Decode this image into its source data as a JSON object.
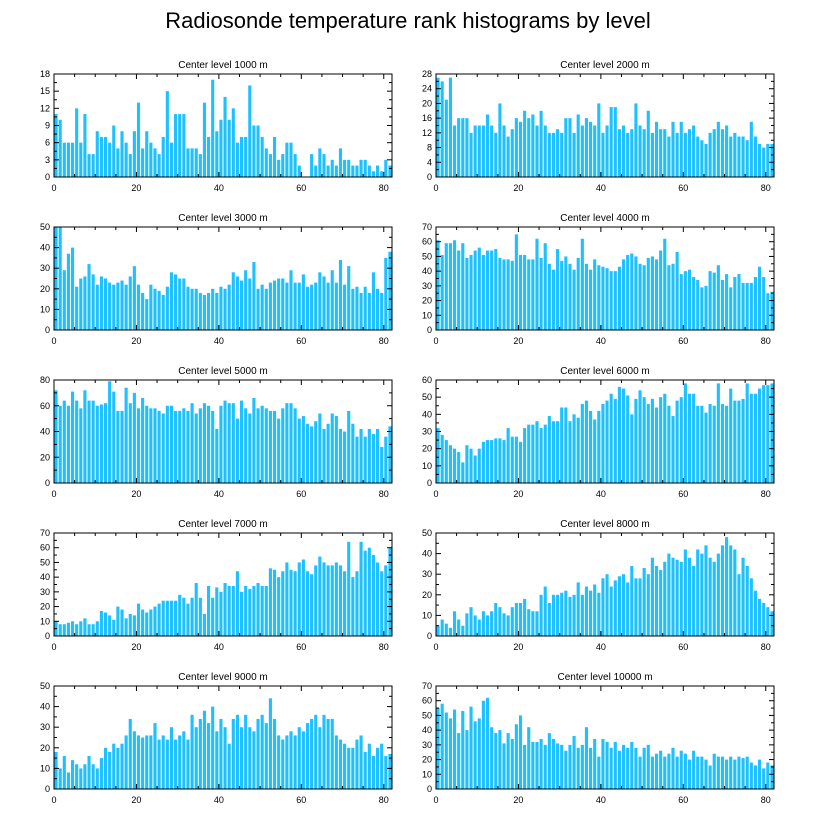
{
  "title": "Radiosonde temperature rank histograms by level",
  "colors": {
    "bar": "#1ec0ff",
    "axis": "#000000"
  },
  "chart_data": [
    {
      "type": "bar",
      "title": "Center level 1000 m",
      "ylim": [
        0,
        18
      ],
      "yticks": [
        0,
        3,
        6,
        9,
        12,
        15,
        18
      ],
      "xlim": [
        0,
        82
      ],
      "xticks": [
        0,
        20,
        40,
        60,
        80
      ],
      "values": [
        11,
        10,
        6,
        6,
        6,
        12,
        6,
        11,
        4,
        4,
        8,
        7,
        7,
        6,
        9,
        5,
        8,
        6,
        4,
        8,
        13,
        5,
        8,
        6,
        5,
        4,
        7,
        15,
        6,
        11,
        11,
        11,
        5,
        5,
        5,
        4,
        13,
        7,
        17,
        8,
        10,
        14,
        10,
        12,
        6,
        7,
        7,
        16,
        9,
        9,
        7,
        5,
        4,
        7,
        3,
        4,
        6,
        6,
        4,
        2,
        0,
        0,
        4,
        2,
        5,
        4,
        2,
        3,
        2,
        5,
        3,
        3,
        2,
        2,
        3,
        3,
        2,
        1,
        2,
        1,
        3,
        2
      ]
    },
    {
      "type": "bar",
      "title": "Center level 2000 m",
      "ylim": [
        0,
        28
      ],
      "yticks": [
        0,
        4,
        8,
        12,
        16,
        20,
        24,
        28
      ],
      "xlim": [
        0,
        82
      ],
      "xticks": [
        0,
        20,
        40,
        60,
        80
      ],
      "values": [
        27,
        26,
        21,
        27,
        14,
        16,
        16,
        16,
        12,
        14,
        14,
        14,
        17,
        14,
        12,
        20,
        14,
        11,
        13,
        16,
        15,
        18,
        16,
        17,
        14,
        18,
        14,
        12,
        12,
        13,
        12,
        16,
        16,
        12,
        17,
        14,
        16,
        15,
        14,
        20,
        12,
        14,
        19,
        19,
        13,
        14,
        12,
        13,
        20,
        14,
        13,
        18,
        12,
        15,
        13,
        13,
        11,
        15,
        12,
        15,
        12,
        13,
        14,
        11,
        10,
        9,
        12,
        13,
        15,
        13,
        14,
        11,
        12,
        11,
        11,
        10,
        15,
        11,
        9,
        8,
        9,
        9
      ]
    },
    {
      "type": "bar",
      "title": "Center level 3000 m",
      "ylim": [
        0,
        50
      ],
      "yticks": [
        0,
        10,
        20,
        30,
        40,
        50
      ],
      "xlim": [
        0,
        82
      ],
      "xticks": [
        0,
        20,
        40,
        60,
        80
      ],
      "values": [
        50,
        50,
        29,
        37,
        40,
        21,
        25,
        26,
        32,
        27,
        22,
        26,
        25,
        23,
        22,
        23,
        24,
        22,
        26,
        31,
        22,
        18,
        15,
        22,
        20,
        19,
        17,
        21,
        28,
        27,
        25,
        25,
        21,
        20,
        20,
        18,
        17,
        18,
        20,
        18,
        21,
        20,
        22,
        28,
        26,
        24,
        29,
        25,
        33,
        20,
        22,
        20,
        23,
        24,
        25,
        25,
        23,
        29,
        23,
        23,
        27,
        21,
        22,
        23,
        28,
        26,
        23,
        29,
        23,
        34,
        22,
        31,
        20,
        21,
        18,
        21,
        18,
        28,
        20,
        18,
        35,
        38
      ]
    },
    {
      "type": "bar",
      "title": "Center level 4000 m",
      "ylim": [
        0,
        70
      ],
      "yticks": [
        0,
        10,
        20,
        30,
        40,
        50,
        60,
        70
      ],
      "xlim": [
        0,
        82
      ],
      "xticks": [
        0,
        20,
        40,
        60,
        80
      ],
      "values": [
        61,
        51,
        59,
        59,
        61,
        54,
        59,
        49,
        51,
        54,
        56,
        51,
        54,
        54,
        55,
        49,
        48,
        48,
        47,
        65,
        51,
        51,
        48,
        48,
        62,
        49,
        59,
        45,
        41,
        55,
        47,
        50,
        45,
        41,
        49,
        62,
        45,
        41,
        48,
        44,
        43,
        42,
        40,
        40,
        43,
        48,
        51,
        52,
        50,
        45,
        44,
        49,
        50,
        48,
        54,
        62,
        44,
        45,
        53,
        38,
        40,
        41,
        36,
        34,
        29,
        30,
        40,
        39,
        44,
        34,
        38,
        29,
        36,
        38,
        32,
        32,
        32,
        36,
        43,
        36,
        25,
        26
      ]
    },
    {
      "type": "bar",
      "title": "Center level 5000 m",
      "ylim": [
        0,
        80
      ],
      "yticks": [
        0,
        20,
        40,
        60,
        80
      ],
      "xlim": [
        0,
        82
      ],
      "xticks": [
        0,
        20,
        40,
        60,
        80
      ],
      "values": [
        72,
        60,
        64,
        60,
        71,
        64,
        58,
        72,
        64,
        64,
        60,
        61,
        62,
        79,
        71,
        56,
        56,
        74,
        62,
        70,
        58,
        66,
        60,
        58,
        58,
        56,
        54,
        60,
        60,
        56,
        56,
        58,
        56,
        62,
        54,
        58,
        62,
        60,
        56,
        42,
        60,
        64,
        62,
        62,
        50,
        64,
        58,
        54,
        66,
        58,
        60,
        58,
        56,
        56,
        50,
        58,
        62,
        62,
        58,
        50,
        52,
        46,
        44,
        48,
        54,
        42,
        46,
        54,
        52,
        42,
        40,
        56,
        46,
        36,
        42,
        36,
        42,
        38,
        42,
        28,
        36,
        44
      ]
    },
    {
      "type": "bar",
      "title": "Center level 6000 m",
      "ylim": [
        0,
        60
      ],
      "yticks": [
        0,
        10,
        20,
        30,
        40,
        50,
        60
      ],
      "xlim": [
        0,
        82
      ],
      "xticks": [
        0,
        20,
        40,
        60,
        80
      ],
      "values": [
        32,
        28,
        25,
        22,
        20,
        18,
        12,
        22,
        20,
        16,
        20,
        24,
        25,
        25,
        26,
        26,
        25,
        32,
        27,
        27,
        24,
        32,
        34,
        34,
        36,
        32,
        34,
        39,
        36,
        36,
        44,
        44,
        36,
        40,
        38,
        46,
        48,
        42,
        37,
        42,
        46,
        48,
        52,
        49,
        56,
        55,
        51,
        40,
        49,
        54,
        50,
        46,
        49,
        44,
        50,
        52,
        45,
        39,
        48,
        50,
        58,
        52,
        52,
        45,
        45,
        41,
        46,
        45,
        58,
        46,
        45,
        55,
        48,
        48,
        49,
        58,
        52,
        52,
        55,
        57,
        57,
        58
      ]
    },
    {
      "type": "bar",
      "title": "Center level 7000 m",
      "ylim": [
        0,
        70
      ],
      "yticks": [
        0,
        10,
        20,
        30,
        40,
        50,
        60,
        70
      ],
      "xlim": [
        0,
        82
      ],
      "xticks": [
        0,
        20,
        40,
        60,
        80
      ],
      "values": [
        10,
        8,
        8,
        9,
        10,
        8,
        10,
        12,
        8,
        8,
        10,
        17,
        16,
        14,
        11,
        20,
        18,
        12,
        15,
        14,
        22,
        18,
        16,
        18,
        20,
        22,
        24,
        24,
        24,
        24,
        28,
        26,
        22,
        26,
        36,
        26,
        15,
        34,
        26,
        33,
        30,
        36,
        34,
        34,
        44,
        30,
        34,
        32,
        34,
        36,
        34,
        34,
        46,
        45,
        40,
        44,
        50,
        45,
        44,
        50,
        52,
        44,
        42,
        48,
        54,
        50,
        48,
        48,
        50,
        48,
        44,
        64,
        40,
        44,
        64,
        58,
        60,
        55,
        50,
        44,
        48,
        60
      ]
    },
    {
      "type": "bar",
      "title": "Center level 8000 m",
      "ylim": [
        0,
        50
      ],
      "yticks": [
        0,
        10,
        20,
        30,
        40,
        50
      ],
      "xlim": [
        0,
        82
      ],
      "xticks": [
        0,
        20,
        40,
        60,
        80
      ],
      "values": [
        5,
        8,
        6,
        4,
        12,
        8,
        5,
        11,
        14,
        10,
        8,
        12,
        10,
        12,
        16,
        14,
        11,
        10,
        14,
        16,
        16,
        18,
        13,
        12,
        12,
        20,
        24,
        16,
        20,
        20,
        21,
        22,
        19,
        20,
        26,
        20,
        24,
        22,
        25,
        21,
        28,
        30,
        24,
        27,
        29,
        30,
        26,
        34,
        28,
        28,
        33,
        30,
        38,
        34,
        32,
        36,
        40,
        38,
        37,
        36,
        42,
        38,
        34,
        42,
        40,
        44,
        38,
        36,
        40,
        44,
        48,
        44,
        42,
        30,
        38,
        34,
        28,
        22,
        18,
        16,
        14,
        12
      ]
    },
    {
      "type": "bar",
      "title": "Center level 9000 m",
      "ylim": [
        0,
        50
      ],
      "yticks": [
        0,
        10,
        20,
        30,
        40,
        50
      ],
      "xlim": [
        0,
        82
      ],
      "xticks": [
        0,
        20,
        40,
        60,
        80
      ],
      "values": [
        18,
        10,
        16,
        8,
        14,
        12,
        10,
        12,
        16,
        12,
        10,
        15,
        20,
        18,
        22,
        20,
        22,
        26,
        34,
        28,
        26,
        25,
        26,
        26,
        32,
        24,
        26,
        24,
        30,
        24,
        26,
        28,
        24,
        36,
        30,
        34,
        38,
        32,
        40,
        28,
        34,
        30,
        22,
        34,
        36,
        30,
        36,
        30,
        28,
        34,
        36,
        32,
        44,
        34,
        26,
        24,
        26,
        28,
        26,
        30,
        28,
        32,
        34,
        36,
        30,
        36,
        34,
        34,
        26,
        24,
        22,
        20,
        20,
        24,
        26,
        18,
        22,
        16,
        20,
        22,
        16,
        17
      ]
    },
    {
      "type": "bar",
      "title": "Center level 10000 m",
      "ylim": [
        0,
        70
      ],
      "yticks": [
        0,
        10,
        20,
        30,
        40,
        50,
        60,
        70
      ],
      "xlim": [
        0,
        82
      ],
      "xticks": [
        0,
        20,
        40,
        60,
        80
      ],
      "values": [
        55,
        58,
        52,
        48,
        54,
        38,
        53,
        40,
        56,
        46,
        48,
        60,
        62,
        42,
        38,
        40,
        31,
        38,
        34,
        44,
        50,
        30,
        42,
        32,
        32,
        34,
        30,
        38,
        34,
        31,
        30,
        26,
        30,
        36,
        28,
        30,
        42,
        28,
        34,
        22,
        34,
        32,
        28,
        32,
        26,
        30,
        28,
        32,
        28,
        22,
        28,
        30,
        22,
        24,
        26,
        22,
        24,
        28,
        22,
        26,
        24,
        20,
        26,
        22,
        22,
        20,
        16,
        24,
        22,
        22,
        20,
        22,
        20,
        22,
        21,
        22,
        18,
        16,
        20,
        14,
        18,
        16
      ]
    }
  ]
}
